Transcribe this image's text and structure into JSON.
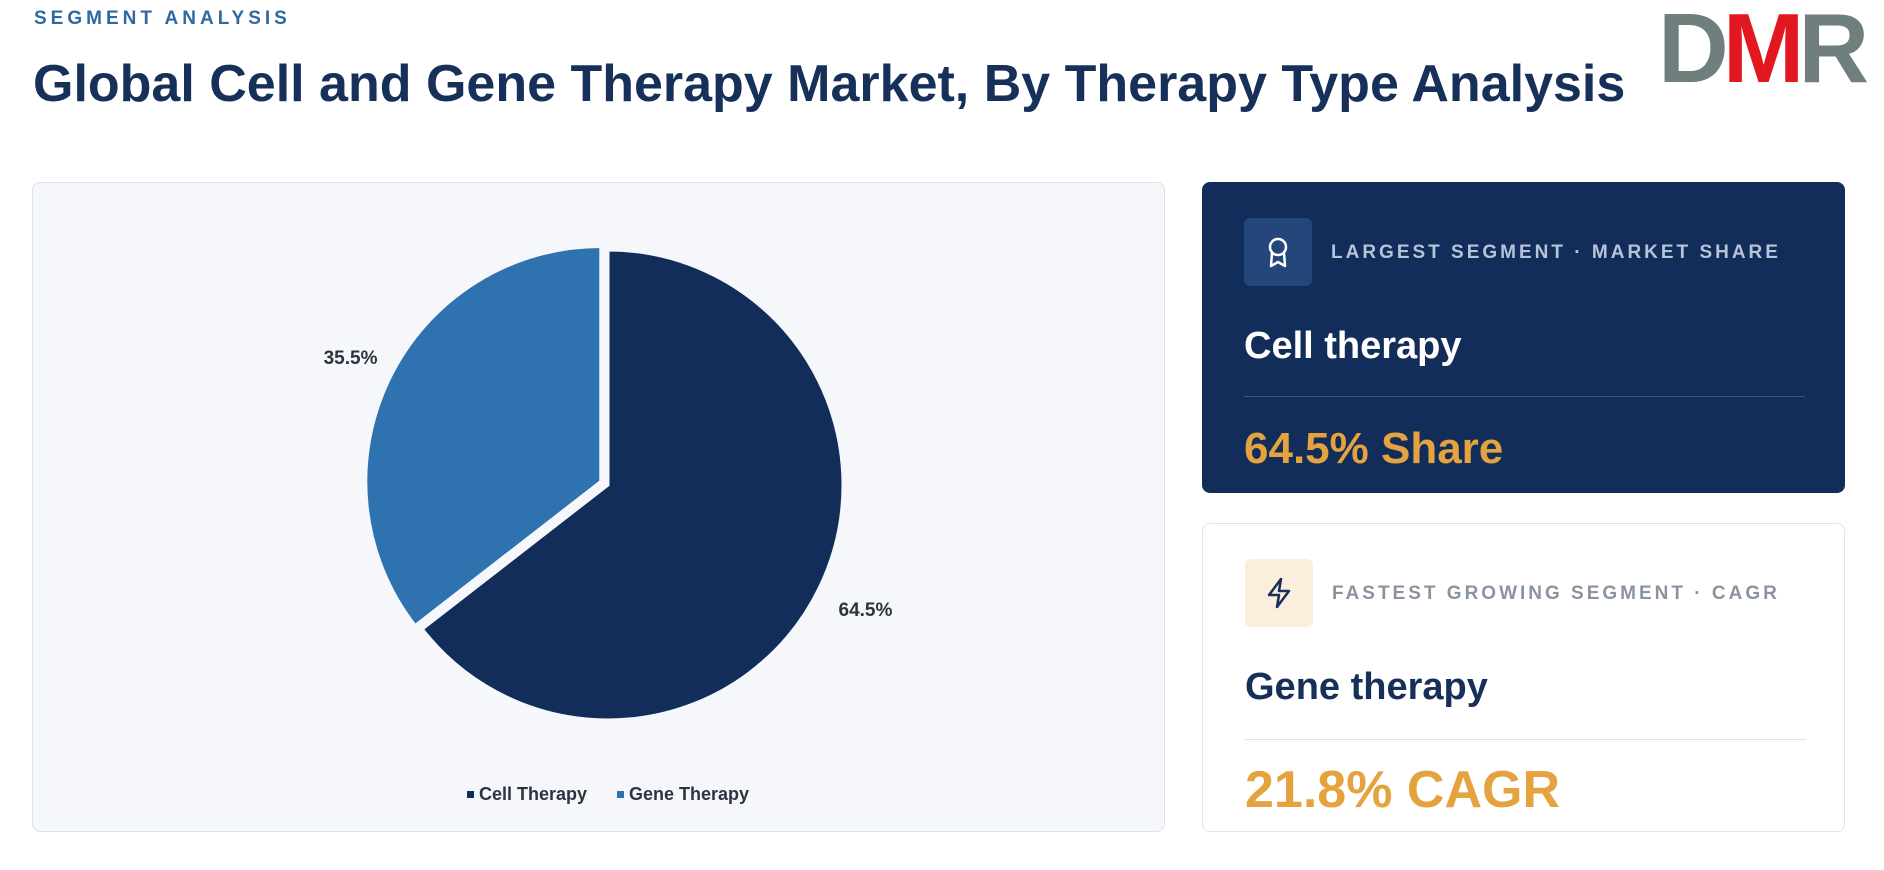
{
  "header": {
    "eyebrow": "SEGMENT ANALYSIS",
    "title": "Global Cell and Gene Therapy Market, By Therapy Type Analysis",
    "logo": [
      "D",
      "M",
      "R"
    ]
  },
  "chart_data": {
    "type": "pie",
    "categories": [
      "Cell Therapy",
      "Gene Therapy"
    ],
    "values": [
      64.5,
      35.5
    ],
    "value_labels": [
      "64.5%",
      "35.5%"
    ],
    "colors": [
      "#122d5a",
      "#2e72b0"
    ],
    "legend": "bottom"
  },
  "cards": [
    {
      "label": "LARGEST SEGMENT · MARKET SHARE",
      "name": "Cell therapy",
      "metric": "64.5% Share"
    },
    {
      "label": "FASTEST GROWING SEGMENT · CAGR",
      "name": "Gene therapy",
      "metric": "21.8% CAGR"
    }
  ]
}
